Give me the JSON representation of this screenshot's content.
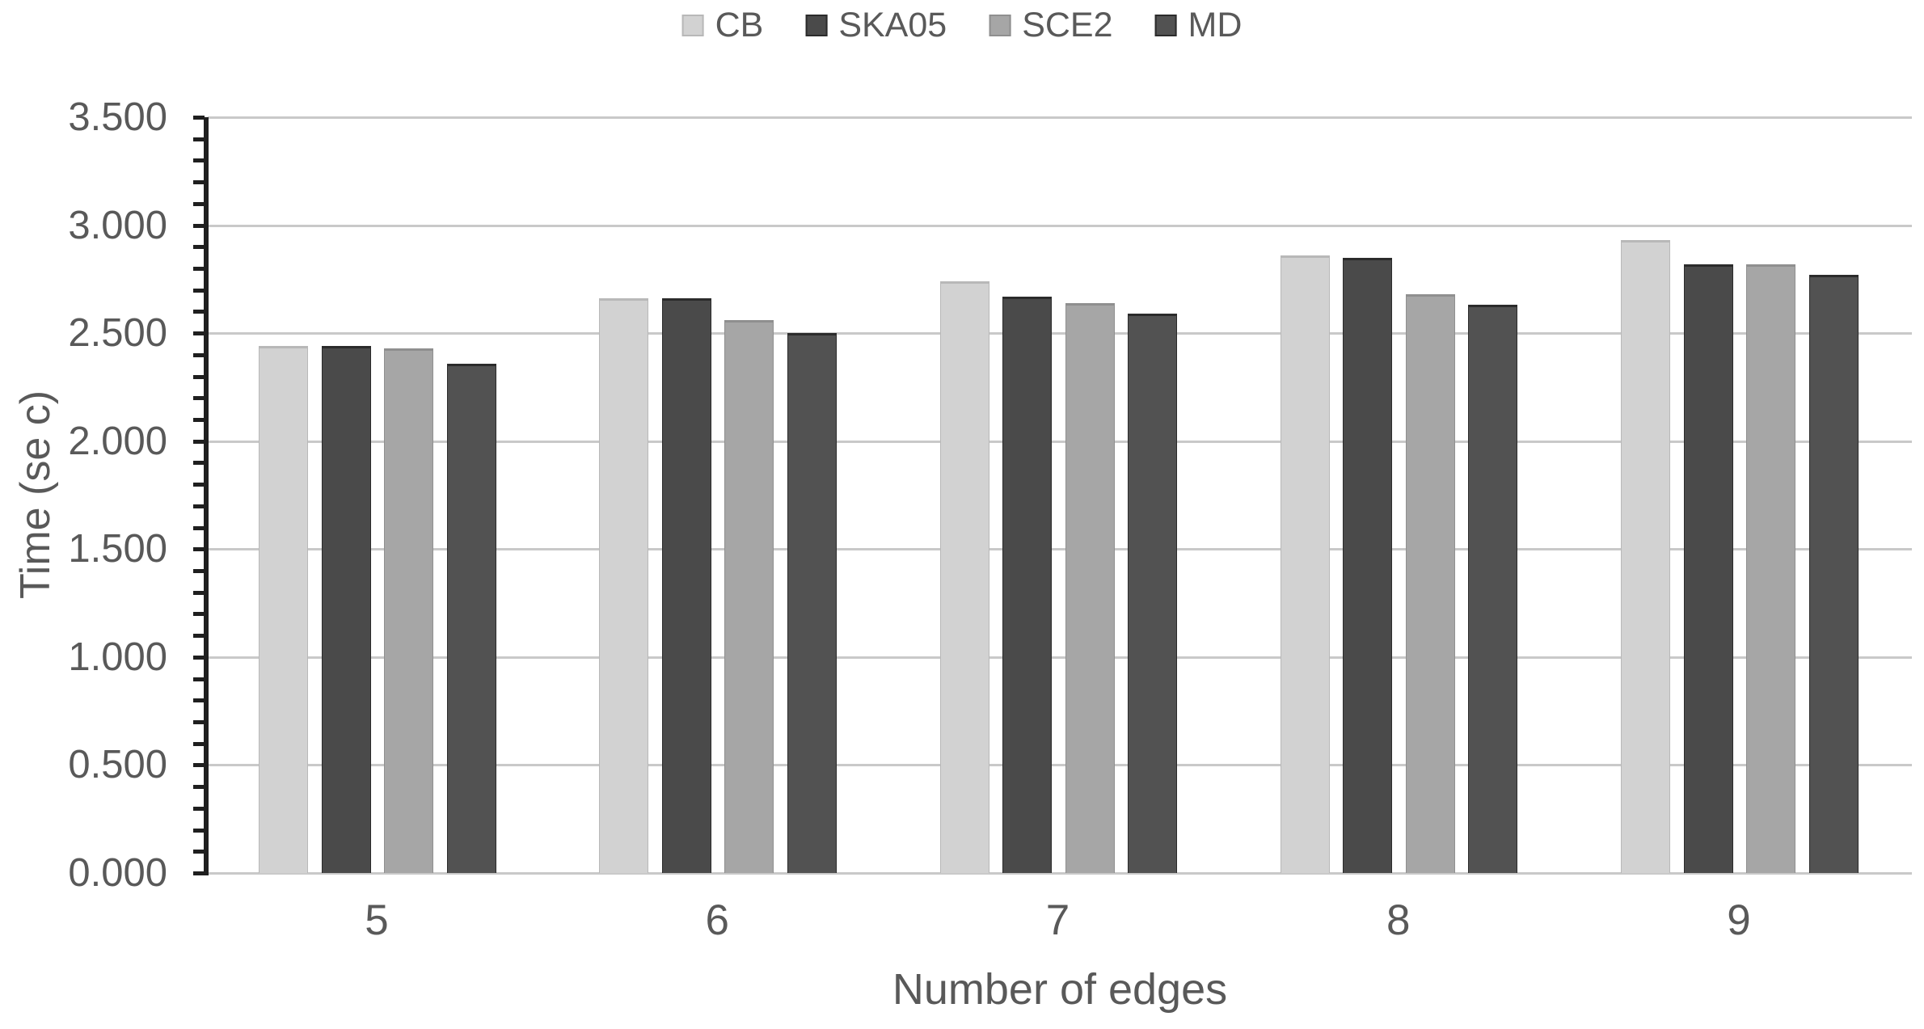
{
  "chart_data": {
    "type": "bar",
    "title": "",
    "categories": [
      "5",
      "6",
      "7",
      "8",
      "9"
    ],
    "series": [
      {
        "name": "CB",
        "color": "#d2d2d2",
        "border": "#b8b8b8",
        "values": [
          2.44,
          2.66,
          2.74,
          2.86,
          2.93
        ]
      },
      {
        "name": "SKA05",
        "color": "#4a4a4a",
        "border": "#2b2b2b",
        "values": [
          2.44,
          2.66,
          2.67,
          2.85,
          2.82
        ]
      },
      {
        "name": "SCE2",
        "color": "#a6a6a6",
        "border": "#8f8f8f",
        "values": [
          2.43,
          2.56,
          2.64,
          2.68,
          2.82
        ]
      },
      {
        "name": "MD",
        "color": "#525252",
        "border": "#2b2b2b",
        "values": [
          2.36,
          2.5,
          2.59,
          2.63,
          2.77
        ]
      }
    ],
    "xlabel": "Number of edges",
    "ylabel": "Time (se c)",
    "ylim": [
      0,
      3.5
    ],
    "y_major_unit": 0.5,
    "y_minor_unit": 0.1,
    "y_tick_labels": [
      "0.000",
      "0.500",
      "1.000",
      "1.500",
      "2.000",
      "2.500",
      "3.000",
      "3.500"
    ],
    "grid": true,
    "legend_position": "top"
  },
  "colors": {
    "background": "#ffffff",
    "gridline": "#c9c9c9",
    "axis_line": "#1f1f1f",
    "text": "#595959"
  }
}
